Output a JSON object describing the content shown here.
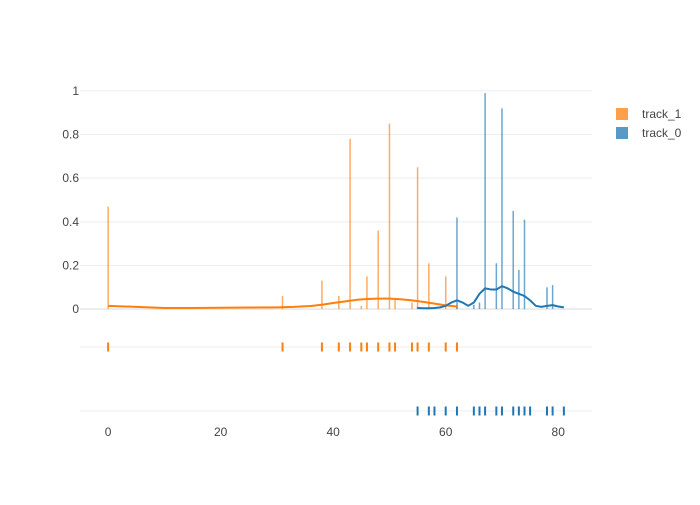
{
  "chart_data": {
    "type": "distplot",
    "title": "",
    "xlabel": "",
    "ylabel": "",
    "xlim": [
      -5,
      86
    ],
    "ylim": [
      -0.05,
      1.05
    ],
    "x_ticks": [
      0,
      20,
      40,
      60,
      80
    ],
    "y_ticks": [
      0,
      0.2,
      0.4,
      0.6,
      0.8,
      1
    ],
    "x_tick_labels": [
      "0",
      "20",
      "40",
      "60",
      "80"
    ],
    "y_tick_labels": [
      "0",
      "0.2",
      "0.4",
      "0.6",
      "0.8",
      "1"
    ],
    "grid": true,
    "legend_position": "top-right",
    "series": [
      {
        "name": "track_1",
        "color": "#ff7f0e",
        "histogram": {
          "x": [
            0,
            31,
            38,
            41,
            43,
            45,
            46,
            48,
            50,
            51,
            54,
            55,
            57,
            60,
            62
          ],
          "y": [
            0.47,
            0.06,
            0.13,
            0.06,
            0.78,
            0.015,
            0.15,
            0.36,
            0.85,
            0.05,
            0.03,
            0.65,
            0.21,
            0.15,
            0.02
          ]
        },
        "curve": {
          "x": [
            0,
            5,
            10,
            15,
            20,
            25,
            30,
            33,
            36,
            38,
            40,
            42,
            44,
            46,
            48,
            50,
            52,
            54,
            56,
            58,
            60,
            62
          ],
          "y": [
            0.015,
            0.01,
            0.005,
            0.005,
            0.006,
            0.007,
            0.008,
            0.01,
            0.014,
            0.02,
            0.028,
            0.035,
            0.042,
            0.046,
            0.048,
            0.048,
            0.045,
            0.04,
            0.033,
            0.025,
            0.017,
            0.012
          ]
        },
        "rug": [
          0,
          31,
          38,
          41,
          43,
          45,
          46,
          48,
          50,
          51,
          54,
          55,
          57,
          60,
          62
        ]
      },
      {
        "name": "track_0",
        "color": "#1f77b4",
        "histogram": {
          "x": [
            55,
            62,
            65,
            66,
            67,
            69,
            70,
            72,
            73,
            74,
            78,
            79
          ],
          "y": [
            0.01,
            0.42,
            0.02,
            0.03,
            0.99,
            0.21,
            0.92,
            0.45,
            0.18,
            0.41,
            0.1,
            0.11
          ]
        },
        "curve": {
          "x": [
            55,
            56,
            57,
            58,
            59,
            60,
            61,
            62,
            63,
            64,
            65,
            66,
            67,
            68,
            69,
            70,
            71,
            72,
            73,
            74,
            75,
            76,
            77,
            78,
            79,
            80,
            81
          ],
          "y": [
            0.005,
            0.004,
            0.004,
            0.005,
            0.008,
            0.015,
            0.03,
            0.04,
            0.03,
            0.015,
            0.03,
            0.07,
            0.095,
            0.09,
            0.09,
            0.105,
            0.095,
            0.08,
            0.07,
            0.06,
            0.04,
            0.015,
            0.01,
            0.015,
            0.018,
            0.012,
            0.008
          ]
        },
        "rug": [
          55,
          57,
          58,
          60,
          62,
          65,
          66,
          67,
          69,
          70,
          72,
          73,
          74,
          75,
          78,
          79,
          81
        ]
      }
    ],
    "legend_order": [
      "track_1",
      "track_0"
    ]
  }
}
